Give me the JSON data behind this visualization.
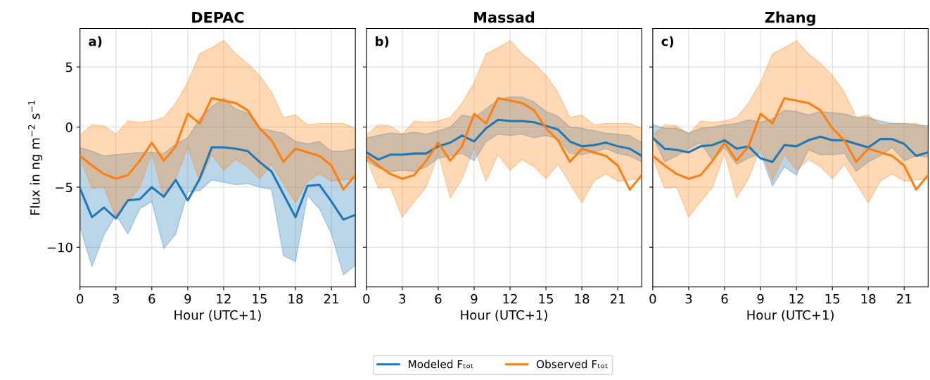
{
  "chart_data": [
    {
      "type": "line",
      "title": "DEPAC",
      "ylabel": "Flux in ng m$^{−2}$ s$^{−1}$",
      "xlabel": "Hour (UTC+1)",
      "annotations": [
        "a)"
      ],
      "x": [
        0,
        1,
        2,
        3,
        4,
        5,
        6,
        7,
        8,
        9,
        10,
        11,
        12,
        13,
        14,
        15,
        16,
        17,
        18,
        19,
        20,
        21,
        22,
        23
      ],
      "xlim": [
        0,
        23
      ],
      "ylim": [
        -13.3,
        8.2
      ],
      "xticks": [
        0,
        3,
        6,
        9,
        12,
        15,
        18,
        21
      ],
      "yticks": [
        -10,
        -5,
        0,
        5
      ],
      "grid": true,
      "legend": "bottom",
      "series": [
        {
          "name": "Modeled Fₜₒₜ",
          "color": "#1f77b4",
          "values": [
            -5.1,
            -7.5,
            -6.7,
            -7.6,
            -6.1,
            -6.0,
            -5.0,
            -5.8,
            -4.4,
            -6.1,
            -4.3,
            -1.7,
            -1.7,
            -1.8,
            -2.0,
            -2.9,
            -3.7,
            -5.6,
            -7.5,
            -4.9,
            -4.8,
            -6.2,
            -7.7,
            -7.3
          ],
          "upper": [
            -1.7,
            -2.0,
            -2.4,
            -2.3,
            -2.2,
            -2.1,
            -2.1,
            -2.2,
            -1.4,
            -0.9,
            0.7,
            1.7,
            2.4,
            1.5,
            1.2,
            -0.1,
            -0.3,
            -0.5,
            -1.2,
            -1.4,
            -1.2,
            -2.0,
            -2.0,
            -1.8
          ],
          "lower": [
            -8.3,
            -11.6,
            -9.0,
            -7.3,
            -8.9,
            -6.8,
            -6.2,
            -10.1,
            -8.9,
            -5.4,
            -5.3,
            -4.4,
            -4.6,
            -4.8,
            -4.7,
            -5.0,
            -5.2,
            -10.7,
            -11.2,
            -5.7,
            -6.8,
            -8.9,
            -12.3,
            -11.5
          ]
        },
        {
          "name": "Observed Fₜₒₜ",
          "color": "#ff7f0e",
          "values": [
            -2.4,
            -3.2,
            -3.9,
            -4.3,
            -4.0,
            -2.8,
            -1.3,
            -2.8,
            -1.6,
            1.1,
            0.3,
            2.4,
            2.2,
            2.0,
            1.4,
            -0.1,
            -1.1,
            -2.9,
            -1.8,
            -2.1,
            -2.4,
            -3.2,
            -5.2,
            -4.0
          ],
          "upper": [
            -0.7,
            0.2,
            0.1,
            -0.6,
            0.5,
            0.4,
            0.5,
            0.8,
            2.0,
            3.7,
            6.1,
            6.6,
            7.2,
            6.1,
            5.3,
            4.3,
            2.9,
            0.8,
            1.0,
            0.2,
            0.3,
            0.3,
            0.3,
            -0.1
          ],
          "lower": [
            -2.6,
            -5.1,
            -5.0,
            -7.5,
            -6.2,
            -5.0,
            -2.2,
            -5.9,
            -4.3,
            -1.7,
            -4.5,
            -2.3,
            -3.6,
            -2.7,
            -3.3,
            -4.3,
            -3.1,
            -4.7,
            -6.3,
            -4.5,
            -3.9,
            -4.5,
            -4.4,
            -4.3
          ]
        }
      ]
    },
    {
      "type": "line",
      "title": "Massad",
      "xlabel": "Hour (UTC+1)",
      "annotations": [
        "b)"
      ],
      "x": [
        0,
        1,
        2,
        3,
        4,
        5,
        6,
        7,
        8,
        9,
        10,
        11,
        12,
        13,
        14,
        15,
        16,
        17,
        18,
        19,
        20,
        21,
        22,
        23
      ],
      "xlim": [
        0,
        23
      ],
      "ylim": [
        -13.3,
        8.2
      ],
      "xticks": [
        0,
        3,
        6,
        9,
        12,
        15,
        18,
        21
      ],
      "yticks": [
        -10,
        -5,
        0,
        5
      ],
      "tick_labels": "x",
      "grid": true,
      "series": [
        {
          "color": "#1f77b4",
          "values": [
            -2.1,
            -2.7,
            -2.3,
            -2.3,
            -2.2,
            -2.2,
            -1.6,
            -1.3,
            -0.7,
            -1.2,
            -0.1,
            0.6,
            0.5,
            0.5,
            0.4,
            0.1,
            -0.2,
            -1.2,
            -1.6,
            -1.5,
            -1.3,
            -1.6,
            -1.8,
            -2.4
          ],
          "upper": [
            -0.9,
            -0.7,
            -0.5,
            -0.6,
            -0.4,
            -0.6,
            -0.3,
            0.0,
            1.0,
            0.8,
            1.5,
            2.3,
            2.5,
            2.5,
            2.1,
            1.3,
            0.9,
            0.0,
            -0.1,
            -0.3,
            -0.5,
            -0.6,
            -0.7,
            -1.3
          ],
          "lower": [
            -2.8,
            -3.4,
            -3.7,
            -3.6,
            -3.7,
            -3.3,
            -2.6,
            -2.4,
            -2.2,
            -2.8,
            -1.2,
            -0.6,
            -0.7,
            -0.6,
            -0.9,
            -0.7,
            -1.0,
            -2.2,
            -2.3,
            -2.1,
            -1.8,
            -2.2,
            -2.4,
            -2.9
          ]
        },
        {
          "color": "#ff7f0e",
          "values": [
            -2.4,
            -3.2,
            -3.9,
            -4.3,
            -4.0,
            -2.8,
            -1.3,
            -2.8,
            -1.6,
            1.1,
            0.3,
            2.4,
            2.2,
            2.0,
            1.4,
            -0.1,
            -1.1,
            -2.9,
            -1.8,
            -2.1,
            -2.4,
            -3.2,
            -5.2,
            -4.0
          ],
          "upper": [
            -0.7,
            0.2,
            0.1,
            -0.6,
            0.5,
            0.4,
            0.5,
            0.8,
            2.0,
            3.7,
            6.1,
            6.6,
            7.2,
            6.1,
            5.3,
            4.3,
            2.9,
            0.8,
            1.0,
            0.2,
            0.3,
            0.3,
            0.3,
            -0.1
          ],
          "lower": [
            -2.6,
            -5.1,
            -5.0,
            -7.5,
            -6.2,
            -5.0,
            -2.2,
            -5.9,
            -4.3,
            -1.7,
            -4.5,
            -2.3,
            -3.6,
            -2.7,
            -3.3,
            -4.3,
            -3.1,
            -4.7,
            -6.3,
            -4.5,
            -3.9,
            -4.5,
            -4.4,
            -4.3
          ]
        }
      ]
    },
    {
      "type": "line",
      "title": "Zhang",
      "xlabel": "Hour (UTC+1)",
      "annotations": [
        "c)"
      ],
      "x": [
        0,
        1,
        2,
        3,
        4,
        5,
        6,
        7,
        8,
        9,
        10,
        11,
        12,
        13,
        14,
        15,
        16,
        17,
        18,
        19,
        20,
        21,
        22,
        23
      ],
      "xlim": [
        0,
        23
      ],
      "ylim": [
        -13.3,
        8.2
      ],
      "xticks": [
        0,
        3,
        6,
        9,
        12,
        15,
        18,
        21
      ],
      "yticks": [
        -10,
        -5,
        0,
        5
      ],
      "tick_labels": "x",
      "grid": true,
      "series": [
        {
          "color": "#1f77b4",
          "values": [
            -0.9,
            -1.8,
            -1.9,
            -2.1,
            -1.6,
            -1.5,
            -1.1,
            -1.8,
            -1.6,
            -2.6,
            -2.9,
            -1.5,
            -1.6,
            -1.1,
            -0.8,
            -1.1,
            -1.1,
            -1.4,
            -1.7,
            -1.0,
            -1.0,
            -1.4,
            -2.4,
            -2.1
          ],
          "upper": [
            0.2,
            -0.1,
            -0.1,
            -0.5,
            -0.1,
            0.0,
            0.2,
            0.3,
            0.6,
            0.4,
            0.7,
            1.4,
            1.3,
            1.0,
            1.3,
            1.2,
            1.1,
            0.8,
            0.8,
            0.5,
            0.3,
            0.3,
            0.2,
            0.1
          ],
          "lower": [
            -0.8,
            -2.9,
            -2.4,
            -1.8,
            -1.3,
            -2.8,
            -1.7,
            -3.1,
            -2.6,
            -2.2,
            -4.9,
            -3.3,
            -4.0,
            -1.9,
            -2.3,
            -2.3,
            -2.2,
            -3.7,
            -2.9,
            -2.4,
            -1.7,
            -2.8,
            -2.4,
            -2.5
          ]
        },
        {
          "color": "#ff7f0e",
          "values": [
            -2.4,
            -3.2,
            -3.9,
            -4.3,
            -4.0,
            -2.8,
            -1.3,
            -2.8,
            -1.6,
            1.1,
            0.3,
            2.4,
            2.2,
            2.0,
            1.4,
            -0.1,
            -1.1,
            -2.9,
            -1.8,
            -2.1,
            -2.4,
            -3.2,
            -5.2,
            -4.0
          ],
          "upper": [
            -0.7,
            0.2,
            0.1,
            -0.6,
            0.5,
            0.4,
            0.5,
            0.8,
            2.0,
            3.7,
            6.1,
            6.6,
            7.2,
            6.1,
            5.3,
            4.3,
            2.9,
            0.8,
            1.0,
            0.2,
            0.3,
            0.3,
            0.3,
            -0.1
          ],
          "lower": [
            -2.6,
            -5.1,
            -5.0,
            -7.5,
            -6.2,
            -5.0,
            -2.2,
            -5.9,
            -4.3,
            -1.7,
            -4.5,
            -2.3,
            -3.6,
            -2.7,
            -3.3,
            -4.3,
            -3.1,
            -4.7,
            -6.3,
            -4.5,
            -3.9,
            -4.5,
            -4.4,
            -4.3
          ]
        }
      ]
    }
  ]
}
